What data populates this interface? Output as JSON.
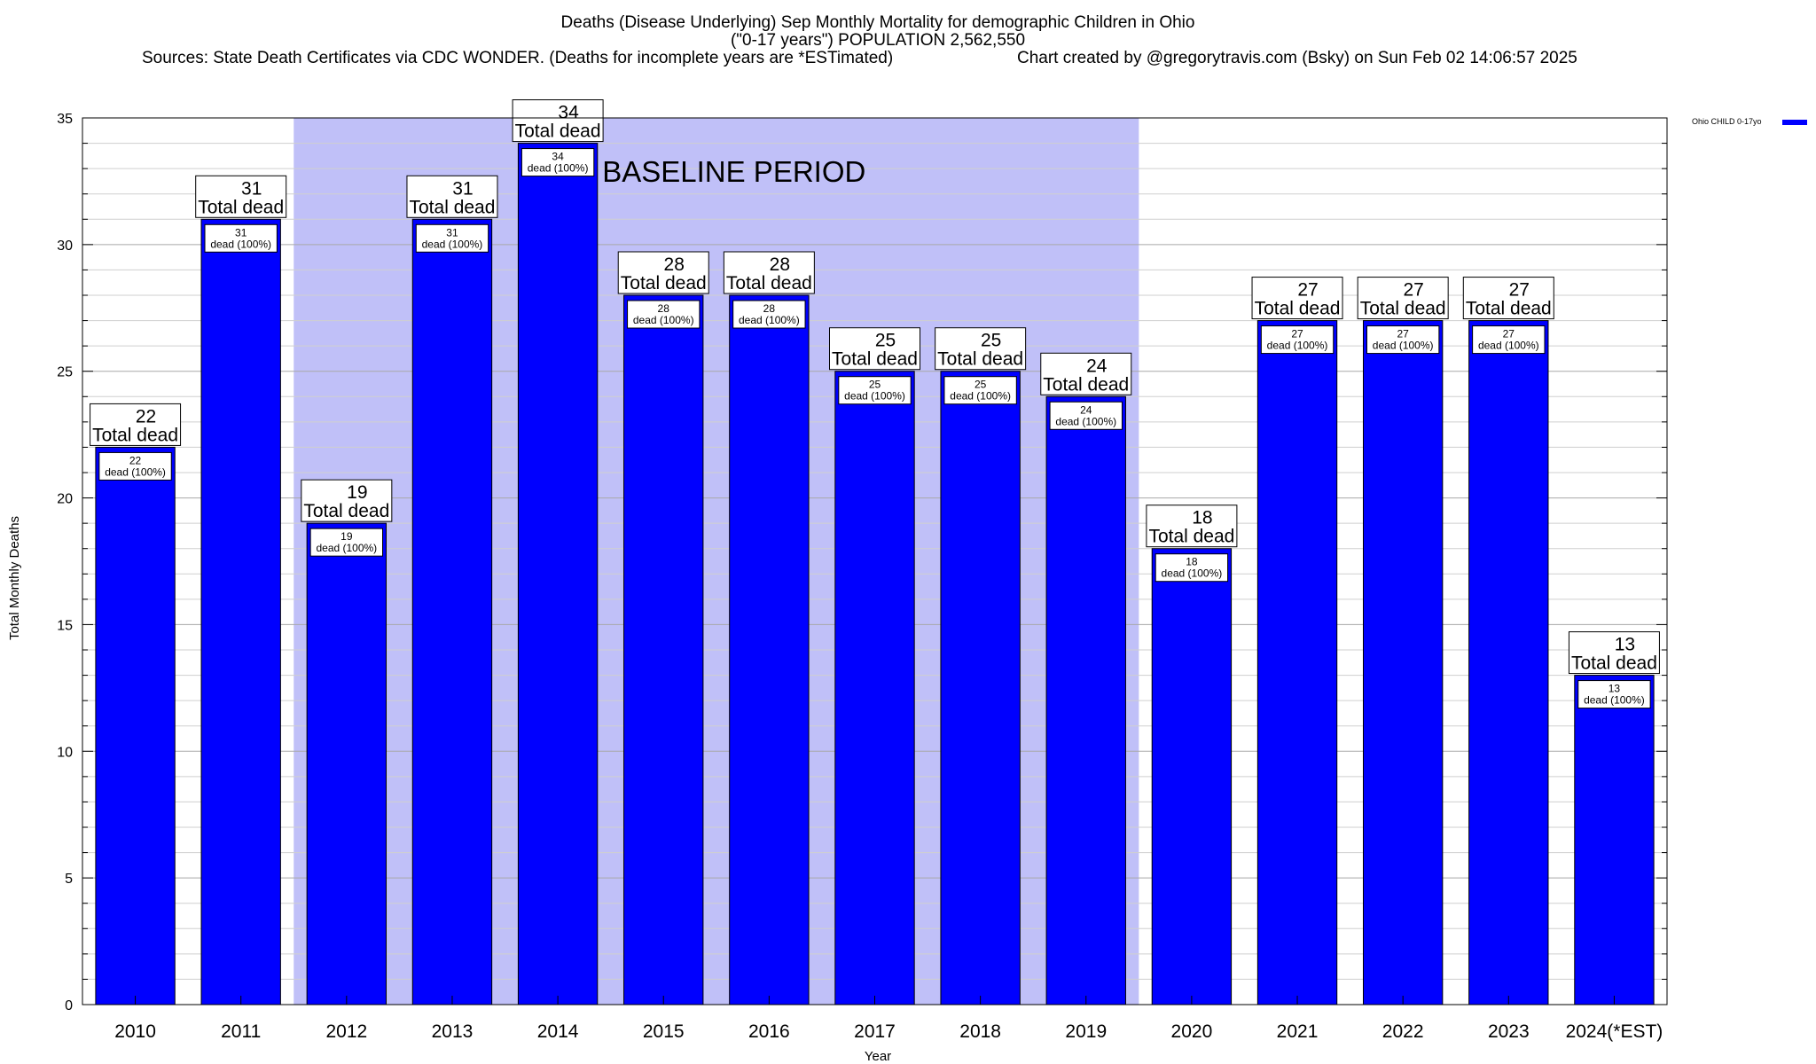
{
  "chart_data": {
    "type": "bar",
    "title_lines": [
      "Deaths (Disease Underlying) Sep Monthly Mortality for demographic Children in Ohio",
      "(\"0-17 years\") POPULATION 2,562,550"
    ],
    "sources": "Sources: State Death Certificates via CDC WONDER. (Deaths for incomplete years are *ESTimated)",
    "credit": "Chart created by @gregorytravis.com (Bsky) on Sun Feb 02 14:06:57 2025",
    "xlabel": "Year",
    "ylabel": "Total Monthly Deaths",
    "ylim": [
      0,
      35
    ],
    "yticks": [
      0,
      5,
      10,
      15,
      20,
      25,
      30,
      35
    ],
    "grid": true,
    "legend": {
      "position": "top-right",
      "label": "Ohio CHILD 0-17yo",
      "color": "#0000ff"
    },
    "categories": [
      "2010",
      "2011",
      "2012",
      "2013",
      "2014",
      "2015",
      "2016",
      "2017",
      "2018",
      "2019",
      "2020",
      "2021",
      "2022",
      "2023",
      "2024(*EST)"
    ],
    "values": [
      22,
      31,
      19,
      31,
      34,
      28,
      28,
      25,
      25,
      24,
      18,
      27,
      27,
      27,
      13
    ],
    "bar_color": "#0000ff",
    "top_label_text": "Total dead",
    "inner_label_text": "dead (100%)",
    "baseline_period": {
      "label": "BASELINE PERIOD",
      "start": "2012",
      "end": "2019",
      "color": "#c0c0f8"
    }
  }
}
